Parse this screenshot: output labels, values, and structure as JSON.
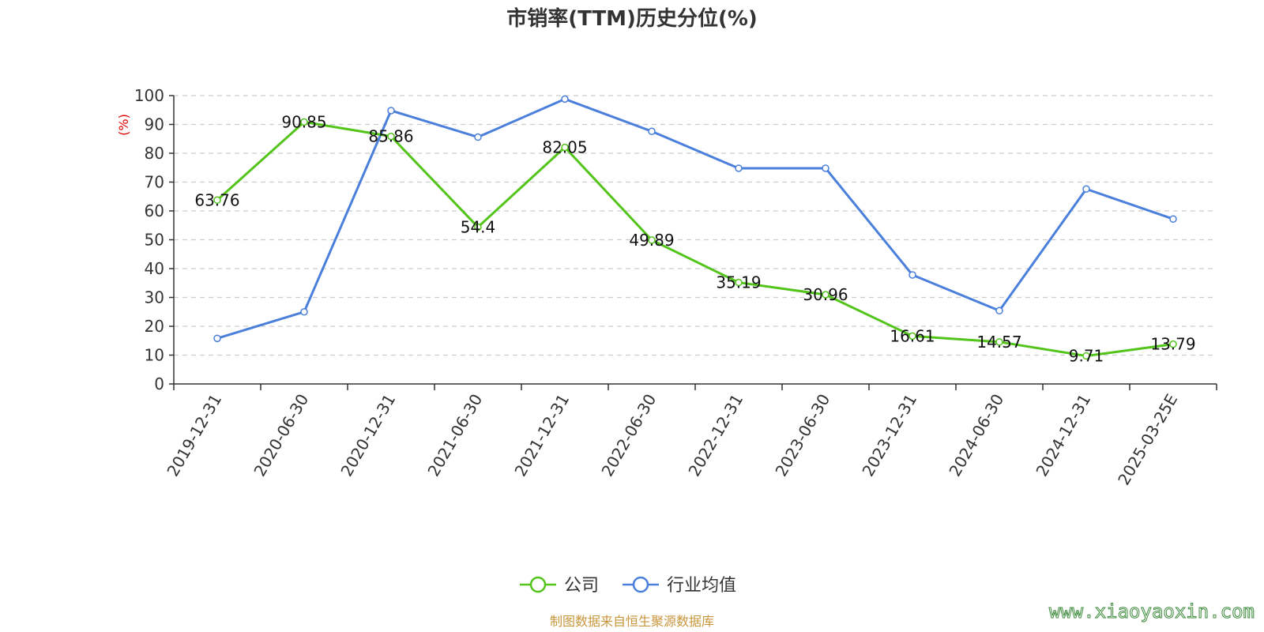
{
  "chart_data": {
    "type": "line",
    "title": "市销率(TTM)历史分位(%)",
    "ylabel": "(%)",
    "ylim": [
      0,
      100
    ],
    "yticks": [
      0,
      10,
      20,
      30,
      40,
      50,
      60,
      70,
      80,
      90,
      100
    ],
    "grid": "horizontal-dashed",
    "legend_position": "bottom-center",
    "categories": [
      "2019-12-31",
      "2020-06-30",
      "2020-12-31",
      "2021-06-30",
      "2021-12-31",
      "2022-06-30",
      "2022-12-31",
      "2023-06-30",
      "2023-12-31",
      "2024-06-30",
      "2024-12-31",
      "2025-03-25E"
    ],
    "series": [
      {
        "name": "公司",
        "color": "#52c41a",
        "values": [
          63.76,
          90.85,
          85.86,
          54.4,
          82.05,
          49.89,
          35.19,
          30.96,
          16.61,
          14.57,
          9.71,
          13.79
        ],
        "labels": [
          "63.76",
          "90.85",
          "85.86",
          "54.4",
          "82.05",
          "49.89",
          "35.19",
          "30.96",
          "16.61",
          "14.57",
          "9.71",
          "13.79"
        ]
      },
      {
        "name": "行业均值",
        "color": "#4a7fdc",
        "values": [
          15.8,
          25.0,
          94.8,
          85.6,
          98.8,
          87.6,
          74.8,
          74.8,
          37.8,
          25.4,
          67.6,
          57.2
        ]
      }
    ]
  },
  "footer": {
    "source": "制图数据来自恒生聚源数据库",
    "source_color": "#c8963c",
    "watermark": "www.xiaoyaoxin.com"
  }
}
